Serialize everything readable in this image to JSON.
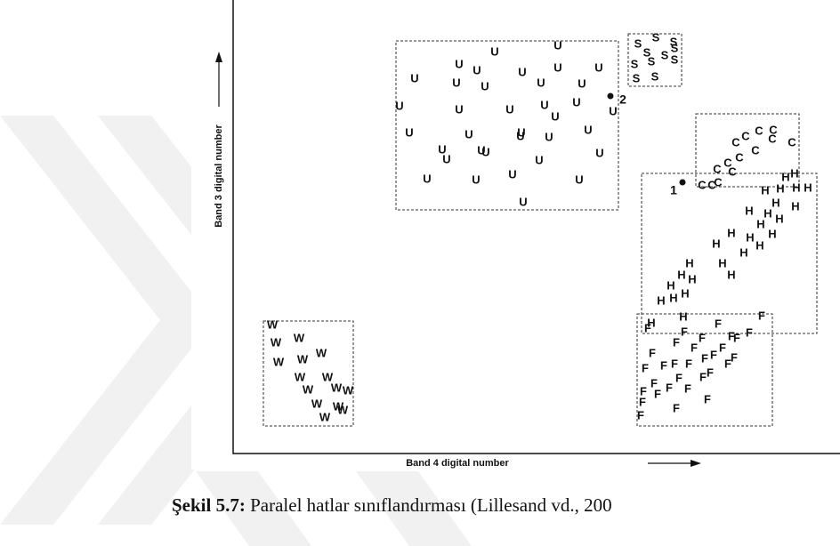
{
  "figure": {
    "y_axis_label": "Band 3 digital number",
    "x_axis_label": "Band 4 digital number",
    "classes": [
      {
        "letter": "U"
      },
      {
        "letter": "S"
      },
      {
        "letter": "C"
      },
      {
        "letter": "H"
      },
      {
        "letter": "F"
      },
      {
        "letter": "W"
      }
    ],
    "points": [
      {
        "label": "1"
      },
      {
        "label": "2"
      }
    ]
  },
  "caption": {
    "number": "Şekil 5.7:",
    "text": "Paralel hatlar sınıflandırması (Lillesand vd., 200"
  }
}
